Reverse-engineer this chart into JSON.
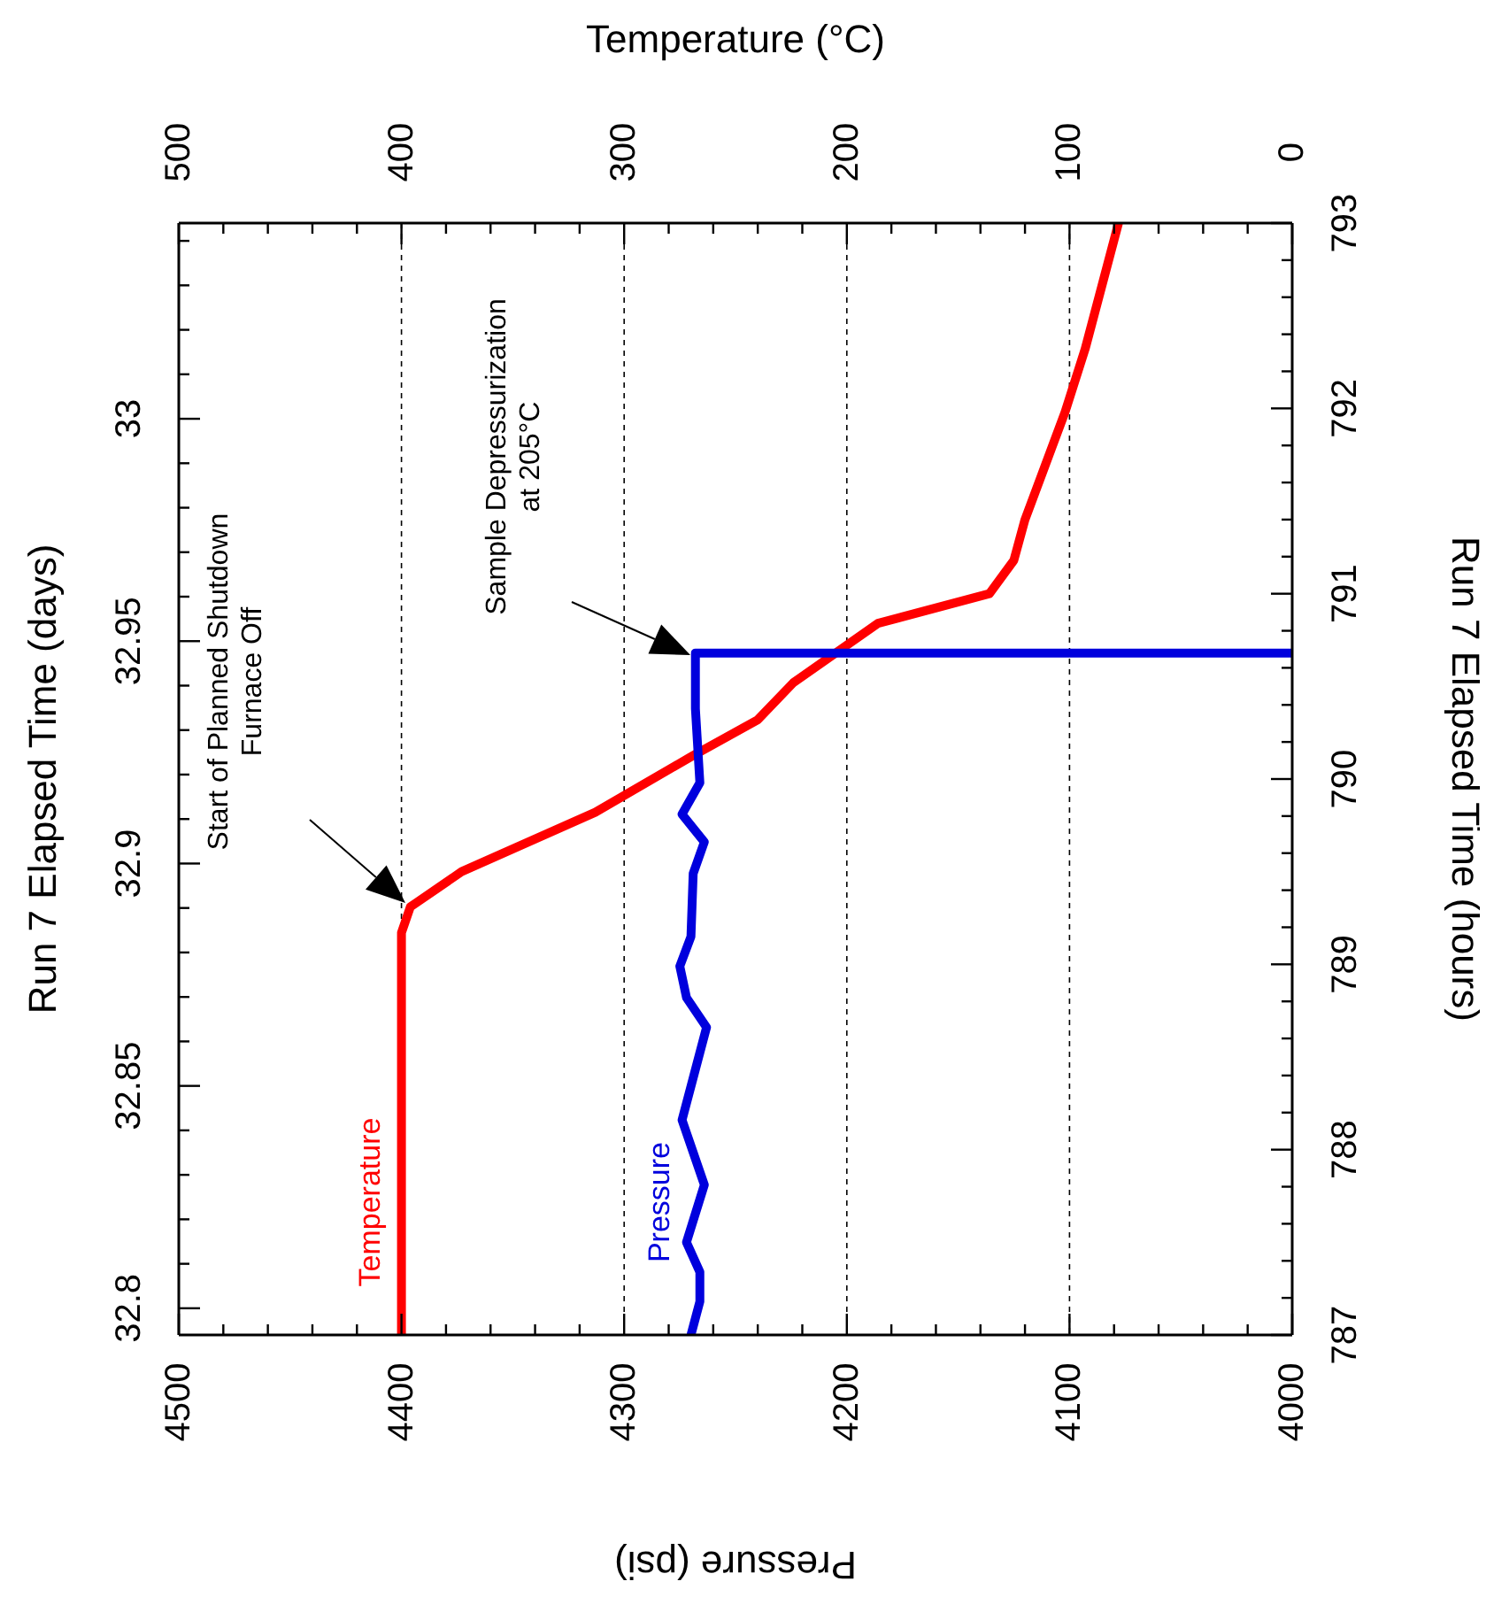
{
  "chart_data": {
    "type": "line",
    "xlabel": "Pressure (psi)",
    "x2label": "Temperature (°C)",
    "ylabel": "Run 7 Elapsed Time (hours)",
    "y2label": "Run 7 Elapsed Time (days)",
    "xlim": [
      4500,
      4000
    ],
    "xticks": [
      4500,
      {
        "value": 4480,
        "label": null
      },
      {
        "value": 4460,
        "label": null
      },
      {
        "value": 4440,
        "label": null
      },
      {
        "value": 4420,
        "label": null
      },
      4400,
      {
        "value": 4380,
        "label": null
      },
      {
        "value": 4360,
        "label": null
      },
      {
        "value": 4340,
        "label": null
      },
      {
        "value": 4320,
        "label": null
      },
      4300,
      {
        "value": 4280,
        "label": null
      },
      {
        "value": 4260,
        "label": null
      },
      {
        "value": 4240,
        "label": null
      },
      {
        "value": 4220,
        "label": null
      },
      4200,
      {
        "value": 4180,
        "label": null
      },
      {
        "value": 4160,
        "label": null
      },
      {
        "value": 4140,
        "label": null
      },
      {
        "value": 4120,
        "label": null
      },
      4100,
      {
        "value": 4080,
        "label": null
      },
      {
        "value": 4060,
        "label": null
      },
      {
        "value": 4040,
        "label": null
      },
      {
        "value": 4020,
        "label": null
      },
      4000
    ],
    "x2lim": [
      500,
      0
    ],
    "x2ticks": [
      500,
      {
        "value": 480,
        "label": null
      },
      {
        "value": 460,
        "label": null
      },
      {
        "value": 440,
        "label": null
      },
      {
        "value": 420,
        "label": null
      },
      400,
      {
        "value": 380,
        "label": null
      },
      {
        "value": 360,
        "label": null
      },
      {
        "value": 340,
        "label": null
      },
      {
        "value": 320,
        "label": null
      },
      300,
      {
        "value": 280,
        "label": null
      },
      {
        "value": 260,
        "label": null
      },
      {
        "value": 240,
        "label": null
      },
      {
        "value": 220,
        "label": null
      },
      200,
      {
        "value": 180,
        "label": null
      },
      {
        "value": 160,
        "label": null
      },
      {
        "value": 140,
        "label": null
      },
      {
        "value": 120,
        "label": null
      },
      100,
      {
        "value": 80,
        "label": null
      },
      {
        "value": 60,
        "label": null
      },
      {
        "value": 40,
        "label": null
      },
      {
        "value": 20,
        "label": null
      },
      0
    ],
    "ylim": [
      787,
      793
    ],
    "yticks": [
      787,
      {
        "value": 787.2,
        "label": null
      },
      {
        "value": 787.4,
        "label": null
      },
      {
        "value": 787.6,
        "label": null
      },
      {
        "value": 787.8,
        "label": null
      },
      788,
      {
        "value": 788.2,
        "label": null
      },
      {
        "value": 788.4,
        "label": null
      },
      {
        "value": 788.6,
        "label": null
      },
      {
        "value": 788.8,
        "label": null
      },
      789,
      {
        "value": 789.2,
        "label": null
      },
      {
        "value": 789.4,
        "label": null
      },
      {
        "value": 789.6,
        "label": null
      },
      {
        "value": 789.8,
        "label": null
      },
      790,
      {
        "value": 790.2,
        "label": null
      },
      {
        "value": 790.4,
        "label": null
      },
      {
        "value": 790.6,
        "label": null
      },
      {
        "value": 790.8,
        "label": null
      },
      791,
      {
        "value": 791.2,
        "label": null
      },
      {
        "value": 791.4,
        "label": null
      },
      {
        "value": 791.6,
        "label": null
      },
      {
        "value": 791.8,
        "label": null
      },
      792,
      {
        "value": 792.2,
        "label": null
      },
      {
        "value": 792.4,
        "label": null
      },
      {
        "value": 792.6,
        "label": null
      },
      {
        "value": 792.8,
        "label": null
      },
      793
    ],
    "y2lim": [
      32.794,
      33.044
    ],
    "y2ticks": [
      32.8,
      {
        "value": 32.81,
        "label": null
      },
      {
        "value": 32.82,
        "label": null
      },
      {
        "value": 32.83,
        "label": null
      },
      {
        "value": 32.84,
        "label": null
      },
      32.85,
      {
        "value": 32.86,
        "label": null
      },
      {
        "value": 32.87,
        "label": null
      },
      {
        "value": 32.88,
        "label": null
      },
      {
        "value": 32.89,
        "label": null
      },
      32.9,
      {
        "value": 32.91,
        "label": null
      },
      {
        "value": 32.92,
        "label": null
      },
      {
        "value": 32.93,
        "label": null
      },
      {
        "value": 32.94,
        "label": null
      },
      32.95,
      {
        "value": 32.96,
        "label": null
      },
      {
        "value": 32.97,
        "label": null
      },
      {
        "value": 32.98,
        "label": null
      },
      {
        "value": 32.99,
        "label": null
      },
      33,
      {
        "value": 33.01,
        "label": null
      },
      {
        "value": 33.02,
        "label": null
      },
      {
        "value": 33.03,
        "label": null
      },
      {
        "value": 33.04,
        "label": null
      }
    ],
    "series": [
      {
        "name": "Temperature",
        "color": "#ff0000",
        "axis": "x2",
        "x": [
          400,
          400,
          396,
          373,
          313,
          270,
          240,
          224,
          186,
          136,
          125,
          120,
          102,
          93,
          78
        ],
        "values": [
          787,
          789.17,
          789.31,
          789.5,
          789.82,
          790.12,
          790.32,
          790.52,
          790.84,
          791.0,
          791.18,
          791.4,
          791.98,
          792.32,
          793
        ]
      },
      {
        "name": "Pressure",
        "color": "#0000dd",
        "x": [
          4270,
          4266,
          4266,
          4272,
          4264,
          4274,
          4263,
          4272,
          4275,
          4270,
          4269,
          4264,
          4274,
          4266,
          4268,
          4268,
          4000
        ],
        "values": [
          787,
          787.18,
          787.34,
          787.5,
          787.81,
          788.16,
          788.66,
          788.82,
          788.99,
          789.15,
          789.49,
          789.66,
          789.81,
          789.98,
          790.38,
          790.68,
          790.68
        ]
      }
    ],
    "annotations": [
      "Start of Planned Shutdown\nFurnace Off",
      "Sample Depressurization\nat 205°C"
    ],
    "grid": "x",
    "legend": false,
    "marker": "none",
    "line_style": "solid"
  }
}
